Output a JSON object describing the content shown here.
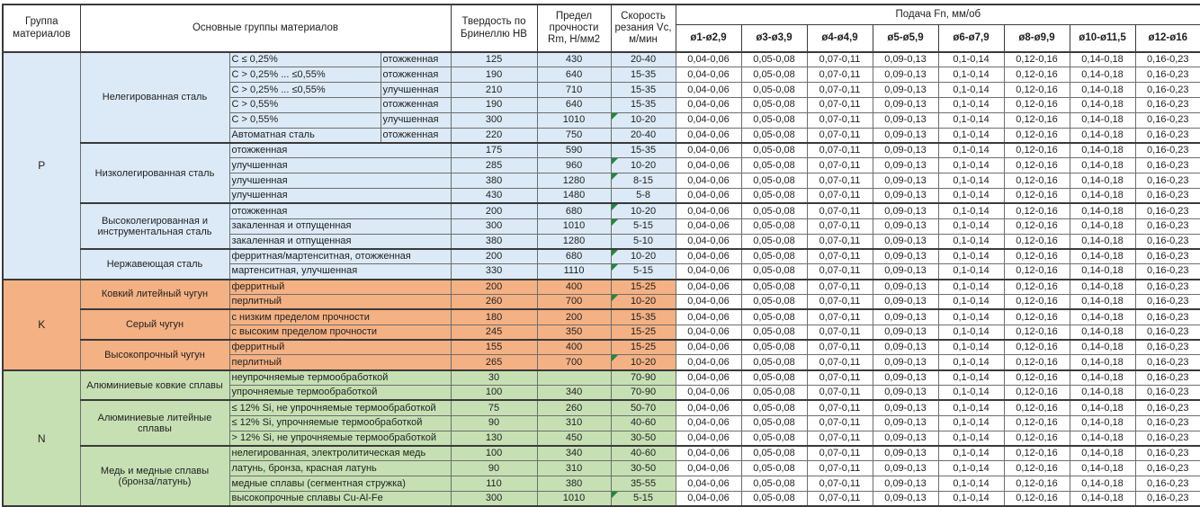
{
  "header": {
    "col_group": "Группа материалов",
    "col_main": "Основные группы материалов",
    "col_hb": "Твердость по Бринеллю HB",
    "col_rm": "Предел прочности Rm, Н/мм2",
    "col_vc": "Скорость резания Vc, м/мин",
    "feed_title": "Подача Fn, мм/об",
    "feed_cols": [
      "ø1-ø2,9",
      "ø3-ø3,9",
      "ø4-ø4,9",
      "ø5-ø5,9",
      "ø6-ø7,9",
      "ø8-ø9,9",
      "ø10-ø11,5",
      "ø12-ø16"
    ]
  },
  "feed_values": [
    "0,04-0,06",
    "0,05-0,08",
    "0,07-0,11",
    "0,09-0,13",
    "0,1-0,14",
    "0,12-0,16",
    "0,14-0,18",
    "0,16-0,23"
  ],
  "flag_color": "#1f8a3c",
  "groups": [
    {
      "code": "P",
      "color": "#dceaf7",
      "subgroups": [
        {
          "name": "Нелегированная сталь",
          "rows": [
            {
              "d1": "C ≤ 0,25%",
              "d2": "отожженная",
              "hb": "125",
              "rm": "430",
              "vc": "20-40",
              "flag": false
            },
            {
              "d1": "C > 0,25% ... ≤0,55%",
              "d2": "отожженная",
              "hb": "190",
              "rm": "640",
              "vc": "15-35",
              "flag": false
            },
            {
              "d1": "C > 0,25% ... ≤0,55%",
              "d2": "улучшенная",
              "hb": "210",
              "rm": "710",
              "vc": "15-35",
              "flag": false
            },
            {
              "d1": "C > 0,55%",
              "d2": "отожженная",
              "hb": "190",
              "rm": "640",
              "vc": "15-35",
              "flag": false
            },
            {
              "d1": "C > 0,55%",
              "d2": "улучшенная",
              "hb": "300",
              "rm": "1010",
              "vc": "10-20",
              "flag": true
            },
            {
              "d1": "Автоматная сталь",
              "d2": "отожженная",
              "hb": "220",
              "rm": "750",
              "vc": "20-40",
              "flag": false
            }
          ]
        },
        {
          "name": "Низколегированная сталь",
          "rows": [
            {
              "d": "отожженная",
              "hb": "175",
              "rm": "590",
              "vc": "15-35",
              "flag": false
            },
            {
              "d": "улучшенная",
              "hb": "285",
              "rm": "960",
              "vc": "10-20",
              "flag": true
            },
            {
              "d": "улучшенная",
              "hb": "380",
              "rm": "1280",
              "vc": "8-15",
              "flag": true
            },
            {
              "d": "улучшенная",
              "hb": "430",
              "rm": "1480",
              "vc": "5-8",
              "flag": false
            }
          ]
        },
        {
          "name": "Высоколегированная и инструментальная сталь",
          "rows": [
            {
              "d": "отожженная",
              "hb": "200",
              "rm": "680",
              "vc": "10-20",
              "flag": true
            },
            {
              "d": "закаленная и отпущенная",
              "hb": "300",
              "rm": "1010",
              "vc": "5-15",
              "flag": true
            },
            {
              "d": "закаленная и отпущенная",
              "hb": "380",
              "rm": "1280",
              "vc": "5-10",
              "flag": false
            }
          ]
        },
        {
          "name": "Нержавеющая сталь",
          "rows": [
            {
              "d": "ферритная/мартенситная, отожженная",
              "hb": "200",
              "rm": "680",
              "vc": "10-20",
              "flag": true
            },
            {
              "d": "мартенситная, улучшенная",
              "hb": "330",
              "rm": "1110",
              "vc": "5-15",
              "flag": true
            }
          ]
        }
      ]
    },
    {
      "code": "K",
      "color": "#f4b183",
      "subgroups": [
        {
          "name": "Ковкий литейный чугун",
          "rows": [
            {
              "d": "ферритный",
              "hb": "200",
              "rm": "400",
              "vc": "15-25",
              "flag": false
            },
            {
              "d": "перлитный",
              "hb": "260",
              "rm": "700",
              "vc": "10-20",
              "flag": true
            }
          ]
        },
        {
          "name": "Серый чугун",
          "rows": [
            {
              "d": "с низким пределом прочности",
              "hb": "180",
              "rm": "200",
              "vc": "15-35",
              "flag": false
            },
            {
              "d": "с высоким пределом прочности",
              "hb": "245",
              "rm": "350",
              "vc": "15-25",
              "flag": false
            }
          ]
        },
        {
          "name": "Высокопрочный чугун",
          "rows": [
            {
              "d": "ферритный",
              "hb": "155",
              "rm": "400",
              "vc": "15-25",
              "flag": false
            },
            {
              "d": "перлитный",
              "hb": "265",
              "rm": "700",
              "vc": "10-20",
              "flag": true
            }
          ]
        }
      ]
    },
    {
      "code": "N",
      "color": "#c6e0b4",
      "subgroups": [
        {
          "name": "Алюминиевые ковкие сплавы",
          "rows": [
            {
              "d": "неупрочняемые термообработкой",
              "hb": "30",
              "rm": "",
              "vc": "70-90",
              "flag": false
            },
            {
              "d": "упрочняемые термообработкой",
              "hb": "100",
              "rm": "340",
              "vc": "70-90",
              "flag": false
            }
          ]
        },
        {
          "name": "Алюминиевые литейные сплавы",
          "rows": [
            {
              "d": "≤ 12% Si, не упрочняемые термообработкой",
              "hb": "75",
              "rm": "260",
              "vc": "50-70",
              "flag": false
            },
            {
              "d": "≤ 12% Si, упрочняемые термообработкой",
              "hb": "90",
              "rm": "310",
              "vc": "40-60",
              "flag": false
            },
            {
              "d": "> 12% Si, не упрочняемые термообработкой",
              "hb": "130",
              "rm": "450",
              "vc": "30-50",
              "flag": false
            }
          ]
        },
        {
          "name": "Медь и медные сплавы (бронза/латунь)",
          "rows": [
            {
              "d": "нелегированная, электролитическая медь",
              "hb": "100",
              "rm": "340",
              "vc": "40-60",
              "flag": false
            },
            {
              "d": "латунь, бронза, красная латунь",
              "hb": "90",
              "rm": "310",
              "vc": "30-50",
              "flag": false
            },
            {
              "d": "медные сплавы (сегментная стружка)",
              "hb": "110",
              "rm": "380",
              "vc": "35-55",
              "flag": false
            },
            {
              "d": "высокопрочные сплавы Cu-Al-Fe",
              "hb": "300",
              "rm": "1010",
              "vc": "5-15",
              "flag": true
            }
          ]
        }
      ]
    }
  ]
}
